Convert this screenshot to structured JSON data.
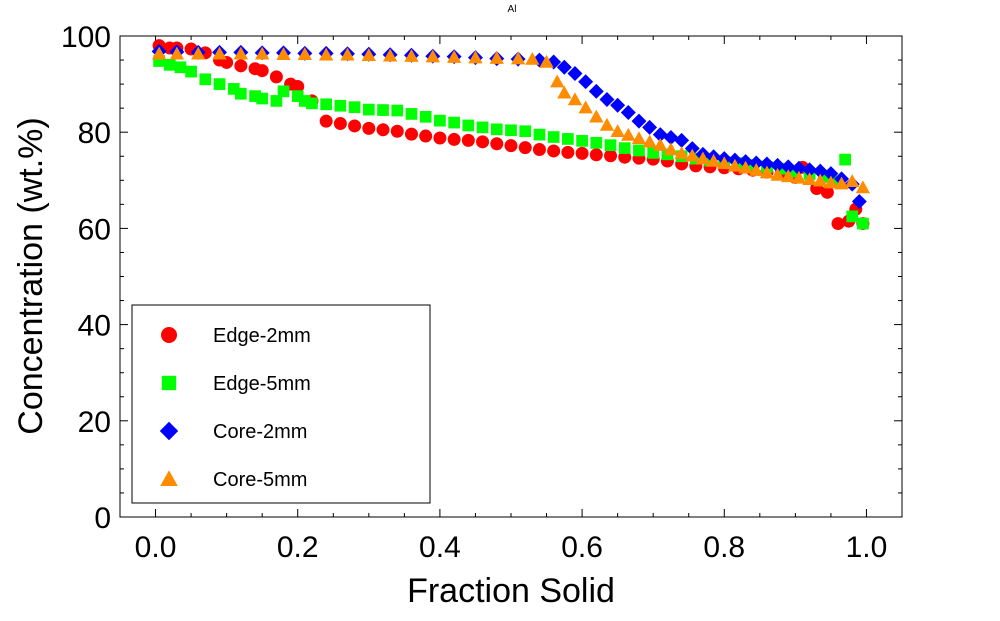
{
  "chart_data": {
    "type": "scatter",
    "title": "Al",
    "xlabel": "Fraction Solid",
    "ylabel": "Concentration (wt.%)",
    "xlim": [
      -0.05,
      1.05
    ],
    "ylim": [
      0,
      100
    ],
    "xticks": [
      0.0,
      0.2,
      0.4,
      0.6,
      0.8,
      1.0
    ],
    "xtick_labels": [
      "0.0",
      "0.2",
      "0.4",
      "0.6",
      "0.8",
      "1.0"
    ],
    "yticks": [
      0,
      20,
      40,
      60,
      80,
      100
    ],
    "ytick_labels": [
      "0",
      "20",
      "40",
      "60",
      "80",
      "100"
    ],
    "grid": false,
    "legend_position": "bottom-left",
    "series": [
      {
        "name": "Edge-2mm",
        "marker": "circle",
        "color": "#ff0000",
        "points": [
          [
            0.005,
            98
          ],
          [
            0.02,
            97.5
          ],
          [
            0.03,
            97.5
          ],
          [
            0.05,
            97.3
          ],
          [
            0.07,
            96.5
          ],
          [
            0.09,
            95
          ],
          [
            0.1,
            94.5
          ],
          [
            0.12,
            93.8
          ],
          [
            0.14,
            93.2
          ],
          [
            0.15,
            92.8
          ],
          [
            0.17,
            91.5
          ],
          [
            0.19,
            90
          ],
          [
            0.2,
            89.5
          ],
          [
            0.22,
            86.5
          ],
          [
            0.24,
            82.3
          ],
          [
            0.26,
            81.8
          ],
          [
            0.28,
            81.3
          ],
          [
            0.3,
            80.8
          ],
          [
            0.32,
            80.5
          ],
          [
            0.34,
            80.2
          ],
          [
            0.36,
            79.6
          ],
          [
            0.38,
            79.2
          ],
          [
            0.4,
            78.8
          ],
          [
            0.42,
            78.5
          ],
          [
            0.44,
            78.3
          ],
          [
            0.46,
            78
          ],
          [
            0.48,
            77.6
          ],
          [
            0.5,
            77.2
          ],
          [
            0.52,
            76.8
          ],
          [
            0.54,
            76.4
          ],
          [
            0.56,
            76.1
          ],
          [
            0.58,
            75.8
          ],
          [
            0.6,
            75.6
          ],
          [
            0.62,
            75.3
          ],
          [
            0.64,
            75.1
          ],
          [
            0.66,
            74.8
          ],
          [
            0.68,
            74.6
          ],
          [
            0.7,
            74.4
          ],
          [
            0.72,
            74
          ],
          [
            0.74,
            73.4
          ],
          [
            0.76,
            73
          ],
          [
            0.78,
            72.8
          ],
          [
            0.8,
            72.6
          ],
          [
            0.82,
            72.4
          ],
          [
            0.84,
            72.1
          ],
          [
            0.86,
            71.7
          ],
          [
            0.88,
            71.4
          ],
          [
            0.9,
            70.6
          ],
          [
            0.91,
            72.7
          ],
          [
            0.93,
            68.3
          ],
          [
            0.945,
            67.5
          ],
          [
            0.96,
            61
          ],
          [
            0.975,
            61.5
          ],
          [
            0.985,
            64
          ],
          [
            0.995,
            61
          ]
        ]
      },
      {
        "name": "Edge-5mm",
        "marker": "square",
        "color": "#00ff00",
        "points": [
          [
            0.005,
            94.8
          ],
          [
            0.02,
            94
          ],
          [
            0.035,
            93.5
          ],
          [
            0.05,
            92.6
          ],
          [
            0.07,
            91
          ],
          [
            0.09,
            90
          ],
          [
            0.11,
            89
          ],
          [
            0.12,
            88
          ],
          [
            0.14,
            87.5
          ],
          [
            0.15,
            87
          ],
          [
            0.17,
            86.5
          ],
          [
            0.18,
            88.5
          ],
          [
            0.2,
            87.5
          ],
          [
            0.21,
            86.5
          ],
          [
            0.22,
            86
          ],
          [
            0.24,
            85.8
          ],
          [
            0.26,
            85.5
          ],
          [
            0.28,
            85.2
          ],
          [
            0.3,
            84.7
          ],
          [
            0.32,
            84.6
          ],
          [
            0.34,
            84.5
          ],
          [
            0.36,
            83.8
          ],
          [
            0.38,
            83.2
          ],
          [
            0.4,
            82.4
          ],
          [
            0.42,
            82
          ],
          [
            0.44,
            81.4
          ],
          [
            0.46,
            81
          ],
          [
            0.48,
            80.6
          ],
          [
            0.5,
            80.4
          ],
          [
            0.52,
            80.2
          ],
          [
            0.54,
            79.5
          ],
          [
            0.56,
            79
          ],
          [
            0.58,
            78.6
          ],
          [
            0.6,
            78.2
          ],
          [
            0.62,
            77.8
          ],
          [
            0.64,
            77.3
          ],
          [
            0.66,
            76.7
          ],
          [
            0.68,
            76.2
          ],
          [
            0.7,
            75.7
          ],
          [
            0.72,
            75.4
          ],
          [
            0.74,
            75
          ],
          [
            0.76,
            74.5
          ],
          [
            0.78,
            74.1
          ],
          [
            0.8,
            73.8
          ],
          [
            0.82,
            73.6
          ],
          [
            0.84,
            73.2
          ],
          [
            0.86,
            72.8
          ],
          [
            0.88,
            72.4
          ],
          [
            0.9,
            71.8
          ],
          [
            0.92,
            71.3
          ],
          [
            0.94,
            70.7
          ],
          [
            0.96,
            69.8
          ],
          [
            0.97,
            74.3
          ],
          [
            0.98,
            62.5
          ],
          [
            0.995,
            61
          ]
        ]
      },
      {
        "name": "Core-2mm",
        "marker": "diamond",
        "color": "#0000ff",
        "points": [
          [
            0.005,
            96.8
          ],
          [
            0.03,
            96.7
          ],
          [
            0.06,
            96.6
          ],
          [
            0.09,
            96.6
          ],
          [
            0.12,
            96.6
          ],
          [
            0.15,
            96.5
          ],
          [
            0.18,
            96.5
          ],
          [
            0.21,
            96.4
          ],
          [
            0.24,
            96.4
          ],
          [
            0.27,
            96.3
          ],
          [
            0.3,
            96.2
          ],
          [
            0.33,
            96.1
          ],
          [
            0.36,
            96
          ],
          [
            0.39,
            95.8
          ],
          [
            0.42,
            95.7
          ],
          [
            0.45,
            95.5
          ],
          [
            0.48,
            95.3
          ],
          [
            0.51,
            95.2
          ],
          [
            0.54,
            95
          ],
          [
            0.56,
            94.6
          ],
          [
            0.575,
            93.5
          ],
          [
            0.59,
            92.2
          ],
          [
            0.605,
            90.5
          ],
          [
            0.62,
            88.5
          ],
          [
            0.635,
            86.8
          ],
          [
            0.65,
            85.6
          ],
          [
            0.665,
            84.1
          ],
          [
            0.68,
            82.3
          ],
          [
            0.695,
            81
          ],
          [
            0.71,
            79.5
          ],
          [
            0.725,
            78.9
          ],
          [
            0.74,
            78.3
          ],
          [
            0.755,
            76.6
          ],
          [
            0.77,
            75.4
          ],
          [
            0.785,
            74.9
          ],
          [
            0.8,
            74.5
          ],
          [
            0.815,
            74.2
          ],
          [
            0.83,
            73.9
          ],
          [
            0.845,
            73.6
          ],
          [
            0.86,
            73.4
          ],
          [
            0.875,
            73.1
          ],
          [
            0.89,
            72.8
          ],
          [
            0.905,
            72.5
          ],
          [
            0.92,
            72.2
          ],
          [
            0.935,
            71.9
          ],
          [
            0.95,
            71.4
          ],
          [
            0.965,
            70.3
          ],
          [
            0.98,
            69.2
          ],
          [
            0.99,
            65.6
          ]
        ]
      },
      {
        "name": "Core-5mm",
        "marker": "triangle",
        "color": "#ff8c00",
        "points": [
          [
            0.005,
            96.3
          ],
          [
            0.03,
            96.3
          ],
          [
            0.06,
            96.3
          ],
          [
            0.09,
            96.3
          ],
          [
            0.12,
            96.3
          ],
          [
            0.15,
            96.3
          ],
          [
            0.18,
            96.2
          ],
          [
            0.21,
            96.2
          ],
          [
            0.24,
            96.1
          ],
          [
            0.27,
            96.1
          ],
          [
            0.3,
            96
          ],
          [
            0.33,
            95.9
          ],
          [
            0.36,
            95.8
          ],
          [
            0.39,
            95.7
          ],
          [
            0.42,
            95.6
          ],
          [
            0.45,
            95.5
          ],
          [
            0.48,
            95.4
          ],
          [
            0.51,
            95.3
          ],
          [
            0.53,
            95.2
          ],
          [
            0.55,
            94.6
          ],
          [
            0.565,
            90.5
          ],
          [
            0.575,
            88.2
          ],
          [
            0.59,
            86.8
          ],
          [
            0.605,
            85.1
          ],
          [
            0.62,
            83.2
          ],
          [
            0.635,
            81.5
          ],
          [
            0.65,
            80.2
          ],
          [
            0.665,
            79.4
          ],
          [
            0.68,
            78.7
          ],
          [
            0.695,
            78
          ],
          [
            0.71,
            77.3
          ],
          [
            0.725,
            76.4
          ],
          [
            0.74,
            75.6
          ],
          [
            0.755,
            75.1
          ],
          [
            0.77,
            74.5
          ],
          [
            0.785,
            74
          ],
          [
            0.8,
            73.5
          ],
          [
            0.815,
            73
          ],
          [
            0.83,
            72.6
          ],
          [
            0.845,
            72.1
          ],
          [
            0.86,
            71.6
          ],
          [
            0.875,
            71.1
          ],
          [
            0.89,
            70.8
          ],
          [
            0.905,
            70.5
          ],
          [
            0.92,
            70.2
          ],
          [
            0.935,
            69.9
          ],
          [
            0.95,
            69.5
          ],
          [
            0.965,
            69.3
          ],
          [
            0.98,
            69.8
          ],
          [
            0.995,
            68.5
          ]
        ]
      }
    ]
  }
}
